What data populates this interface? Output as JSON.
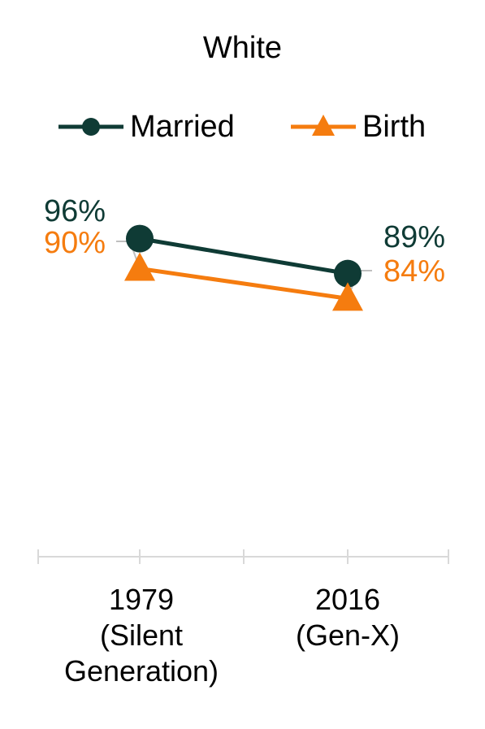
{
  "chart_data": {
    "type": "line",
    "title": "White",
    "categories": [
      "1979\n(Silent\nGeneration)",
      "2016\n(Gen-X)"
    ],
    "series": [
      {
        "name": "Married",
        "values": [
          96,
          89
        ],
        "labels": [
          "96%",
          "89%"
        ],
        "color": "#0f3b35",
        "marker": "circle"
      },
      {
        "name": "Birth",
        "values": [
          90,
          84
        ],
        "labels": [
          "90%",
          "84%"
        ],
        "color": "#f57c0f",
        "marker": "triangle"
      }
    ],
    "ylim": [
      0,
      100
    ],
    "grid": false,
    "legend": "top",
    "xlabel": "",
    "ylabel": ""
  }
}
